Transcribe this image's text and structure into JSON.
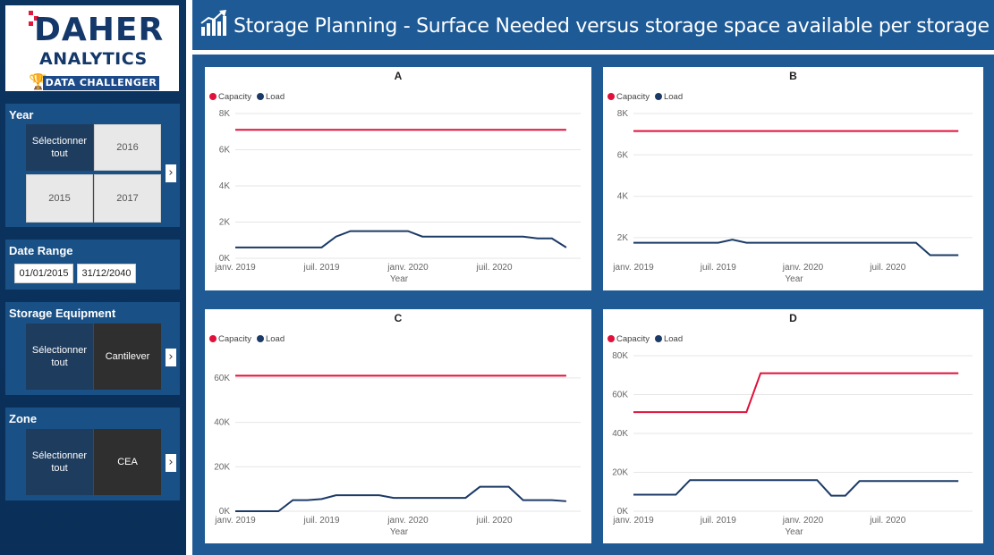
{
  "logo": {
    "line1": "DAHER",
    "line2": "ANALYTICS",
    "badge": "DATA CHALLENGER",
    "icon": "trophy-icon"
  },
  "header": {
    "title": "Storage Planning - Surface Needed versus storage space available per storage type",
    "icon": "chart-growth-icon"
  },
  "slicers": {
    "year": {
      "title": "Year",
      "tiles": [
        "Sélectionner tout",
        "2016",
        "2015",
        "2017"
      ]
    },
    "date_range": {
      "title": "Date Range",
      "start": "01/01/2015",
      "end": "31/12/2040"
    },
    "storage_equipment": {
      "title": "Storage Equipment",
      "tiles": [
        "Sélectionner tout",
        "Cantilever"
      ]
    },
    "zone": {
      "title": "Zone",
      "tiles": [
        "Sélectionner tout",
        "CEA"
      ]
    }
  },
  "colors": {
    "capacity": "#e0103a",
    "load": "#1b3a66",
    "grid": "#e6e6e6"
  },
  "legend": {
    "capacity": "Capacity",
    "load": "Load"
  },
  "chart_data": [
    {
      "type": "line",
      "title": "A",
      "xlabel": "Year",
      "ylabel": "",
      "ylim": [
        0,
        8000
      ],
      "yticks": [
        0,
        2000,
        4000,
        6000,
        8000
      ],
      "ytick_labels": [
        "0K",
        "2K",
        "4K",
        "6K",
        "8K"
      ],
      "xlim": [
        0,
        24
      ],
      "xticks": [
        0,
        6,
        12,
        18
      ],
      "xtick_labels": [
        "janv. 2019",
        "juil. 2019",
        "janv. 2020",
        "juil. 2020"
      ],
      "series": [
        {
          "name": "Capacity",
          "x": [
            0,
            23
          ],
          "values": [
            7100,
            7100
          ]
        },
        {
          "name": "Load",
          "x": [
            0,
            1,
            2,
            3,
            4,
            5,
            6,
            7,
            8,
            9,
            10,
            11,
            12,
            13,
            14,
            15,
            16,
            17,
            18,
            19,
            20,
            21,
            22,
            23
          ],
          "values": [
            600,
            600,
            600,
            600,
            600,
            600,
            600,
            1200,
            1500,
            1500,
            1500,
            1500,
            1500,
            1200,
            1200,
            1200,
            1200,
            1200,
            1200,
            1200,
            1200,
            1100,
            1100,
            600
          ]
        }
      ]
    },
    {
      "type": "line",
      "title": "B",
      "xlabel": "Year",
      "ylabel": "",
      "ylim": [
        1000,
        8000
      ],
      "yticks": [
        2000,
        4000,
        6000,
        8000
      ],
      "ytick_labels": [
        "2K",
        "4K",
        "6K",
        "8K"
      ],
      "xlim": [
        0,
        24
      ],
      "xticks": [
        0,
        6,
        12,
        18
      ],
      "xtick_labels": [
        "janv. 2019",
        "juil. 2019",
        "janv. 2020",
        "juil. 2020"
      ],
      "series": [
        {
          "name": "Capacity",
          "x": [
            0,
            23
          ],
          "values": [
            7150,
            7150
          ]
        },
        {
          "name": "Load",
          "x": [
            0,
            1,
            2,
            3,
            4,
            5,
            6,
            7,
            8,
            9,
            10,
            11,
            12,
            13,
            14,
            15,
            16,
            17,
            18,
            19,
            20,
            21,
            22,
            23
          ],
          "values": [
            1750,
            1750,
            1750,
            1750,
            1750,
            1750,
            1750,
            1900,
            1750,
            1750,
            1750,
            1750,
            1750,
            1750,
            1750,
            1750,
            1750,
            1750,
            1750,
            1750,
            1750,
            1150,
            1150,
            1150
          ]
        }
      ]
    },
    {
      "type": "line",
      "title": "C",
      "xlabel": "Year",
      "ylabel": "",
      "ylim": [
        0,
        70000
      ],
      "yticks": [
        0,
        20000,
        40000,
        60000
      ],
      "ytick_labels": [
        "0K",
        "20K",
        "40K",
        "60K"
      ],
      "xlim": [
        0,
        24
      ],
      "xticks": [
        0,
        6,
        12,
        18
      ],
      "xtick_labels": [
        "janv. 2019",
        "juil. 2019",
        "janv. 2020",
        "juil. 2020"
      ],
      "series": [
        {
          "name": "Capacity",
          "x": [
            0,
            23
          ],
          "values": [
            61000,
            61000
          ]
        },
        {
          "name": "Load",
          "x": [
            0,
            1,
            2,
            3,
            4,
            5,
            6,
            7,
            8,
            9,
            10,
            11,
            12,
            13,
            14,
            15,
            16,
            17,
            18,
            19,
            20,
            21,
            22,
            23
          ],
          "values": [
            0,
            0,
            0,
            0,
            5000,
            5000,
            5500,
            7200,
            7200,
            7200,
            7200,
            6000,
            6000,
            6000,
            6000,
            6000,
            6000,
            11000,
            11000,
            11000,
            5000,
            5000,
            5000,
            4500
          ]
        }
      ]
    },
    {
      "type": "line",
      "title": "D",
      "xlabel": "Year",
      "ylabel": "",
      "ylim": [
        0,
        80000
      ],
      "yticks": [
        0,
        20000,
        40000,
        60000,
        80000
      ],
      "ytick_labels": [
        "0K",
        "20K",
        "40K",
        "60K",
        "80K"
      ],
      "xlim": [
        0,
        24
      ],
      "xticks": [
        0,
        6,
        12,
        18
      ],
      "xtick_labels": [
        "janv. 2019",
        "juil. 2019",
        "janv. 2020",
        "juil. 2020"
      ],
      "series": [
        {
          "name": "Capacity",
          "x": [
            0,
            1,
            2,
            3,
            4,
            5,
            6,
            7,
            8,
            9,
            10,
            11,
            12,
            13,
            14,
            15,
            16,
            17,
            18,
            19,
            20,
            21,
            22,
            23
          ],
          "values": [
            51000,
            51000,
            51000,
            51000,
            51000,
            51000,
            51000,
            51000,
            51000,
            71000,
            71000,
            71000,
            71000,
            71000,
            71000,
            71000,
            71000,
            71000,
            71000,
            71000,
            71000,
            71000,
            71000,
            71000
          ]
        },
        {
          "name": "Load",
          "x": [
            0,
            1,
            2,
            3,
            4,
            5,
            6,
            7,
            8,
            9,
            10,
            11,
            12,
            13,
            14,
            15,
            16,
            17,
            18,
            19,
            20,
            21,
            22,
            23
          ],
          "values": [
            8500,
            8500,
            8500,
            8500,
            16000,
            16000,
            16000,
            16000,
            16000,
            16000,
            16000,
            16000,
            16000,
            16000,
            8000,
            8000,
            15500,
            15500,
            15500,
            15500,
            15500,
            15500,
            15500,
            15500
          ]
        }
      ]
    }
  ]
}
